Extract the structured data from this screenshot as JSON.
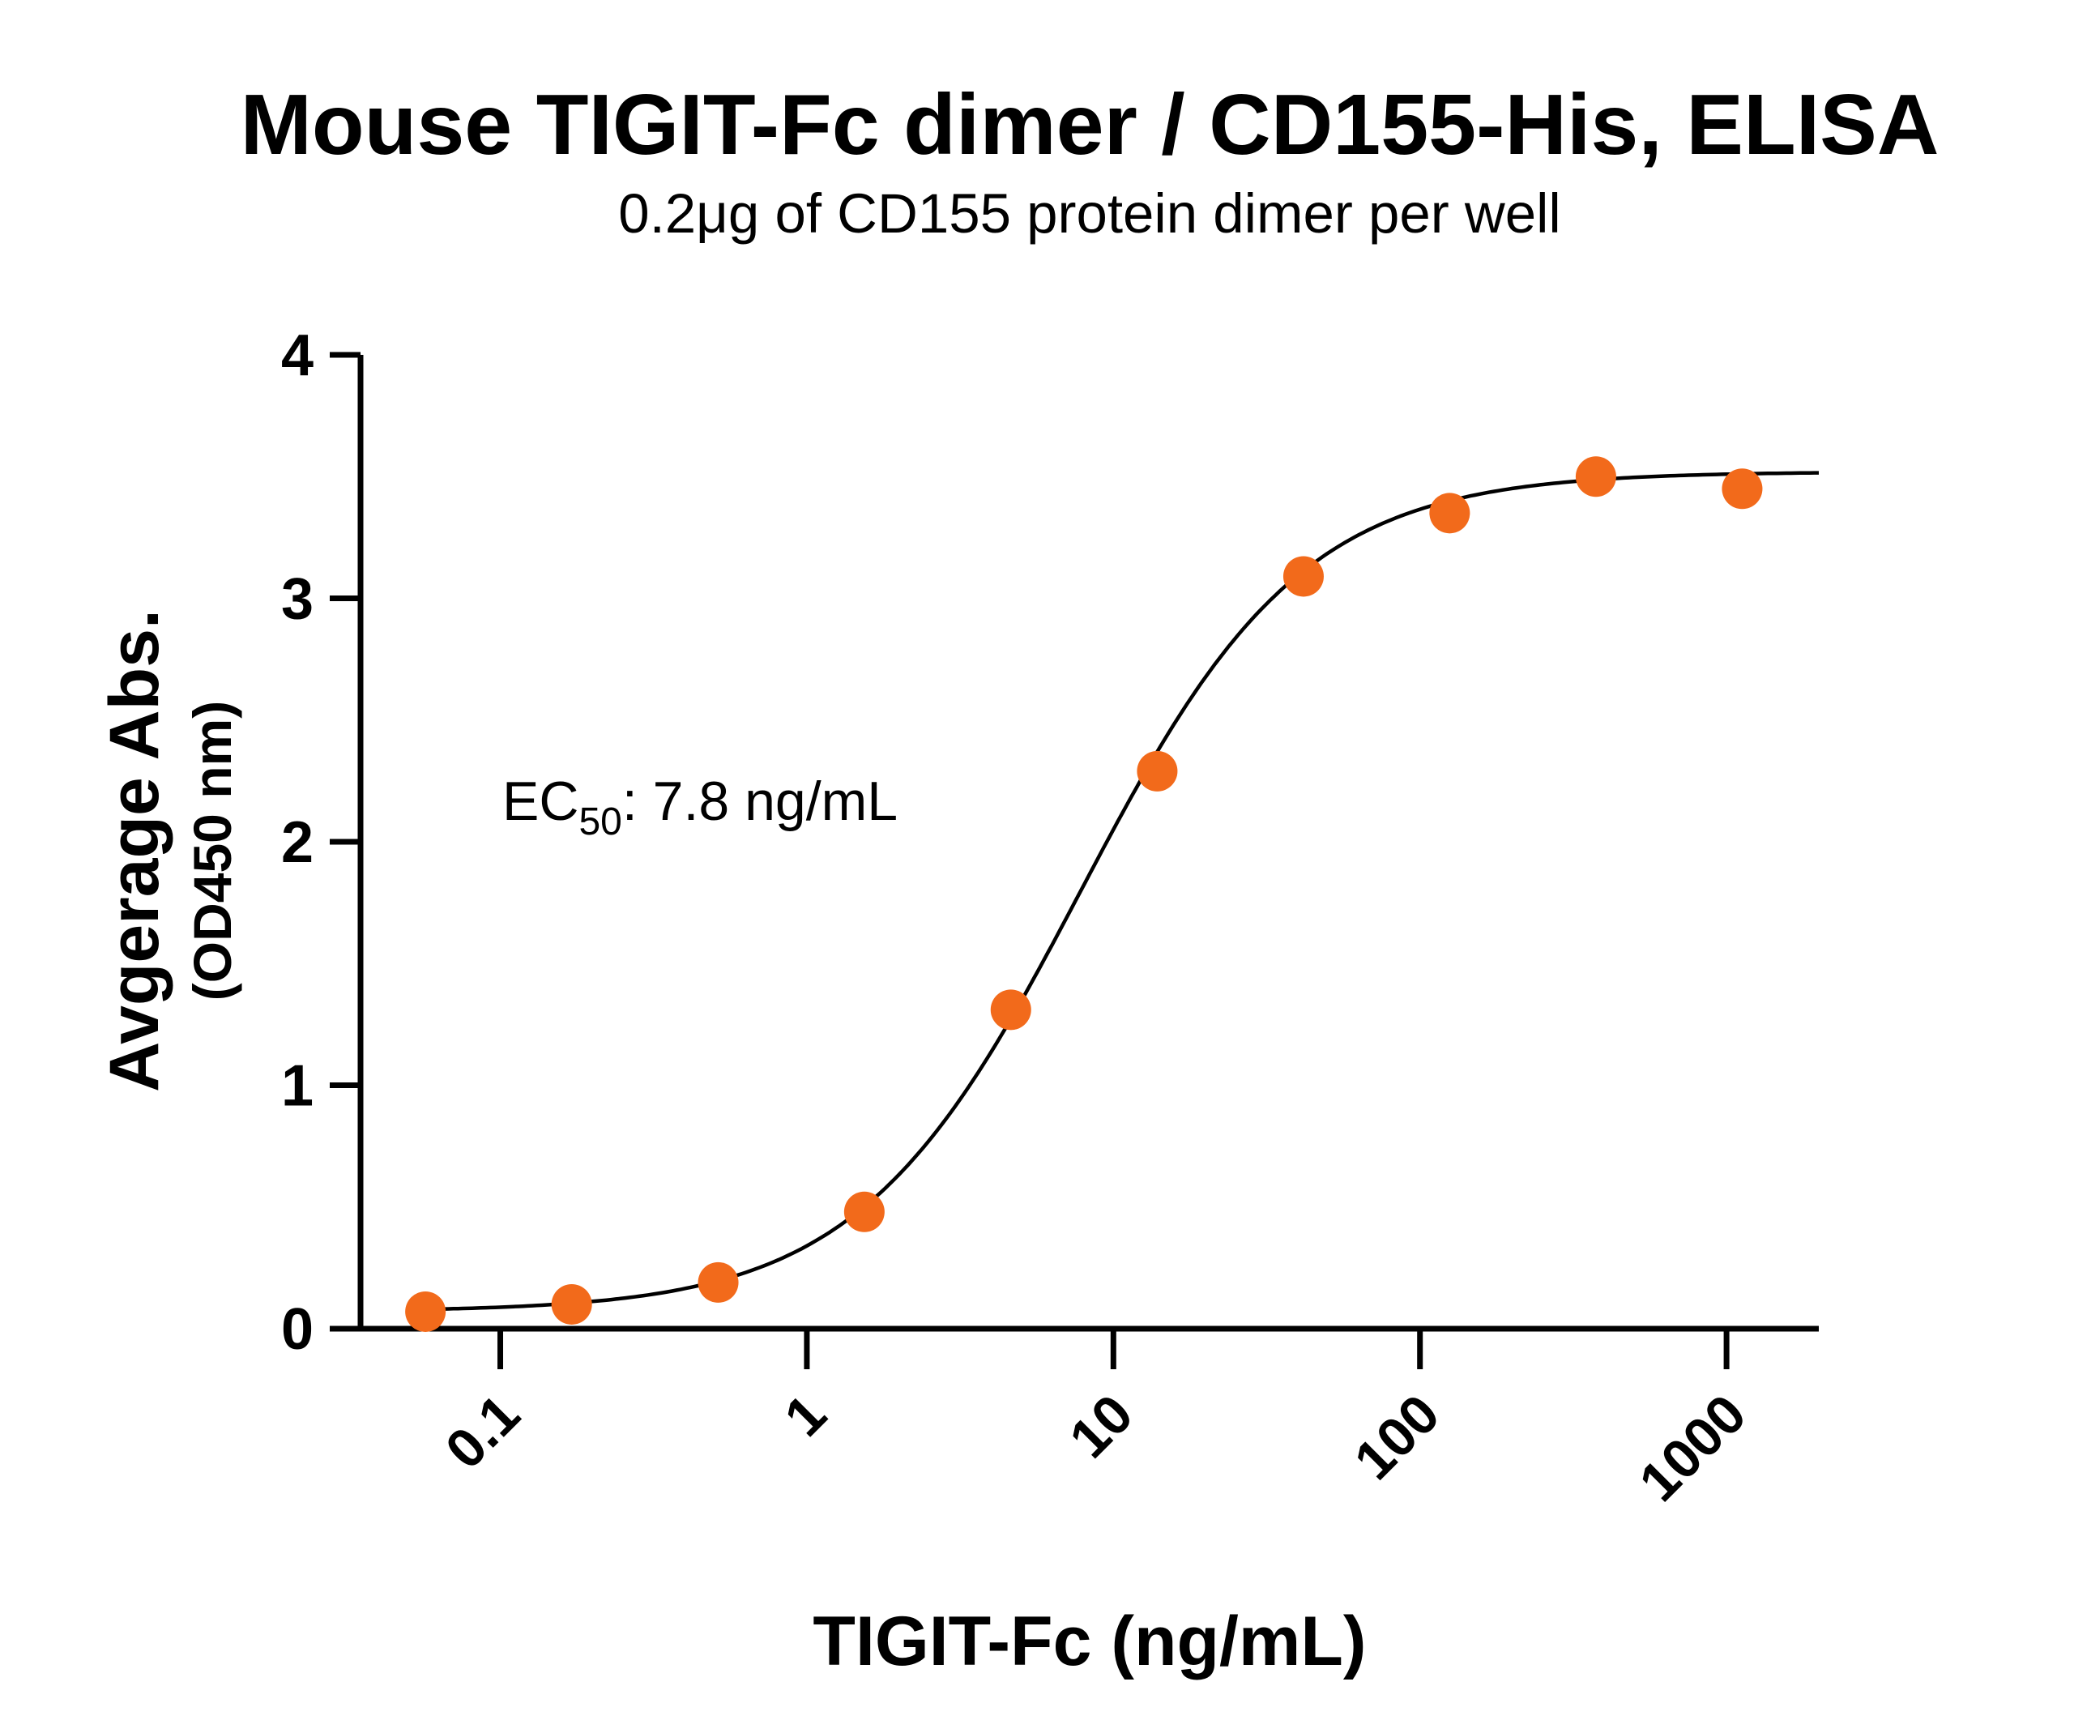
{
  "chart_data": {
    "type": "scatter",
    "title": "Mouse TIGIT-Fc dimer / CD155-His, ELISA",
    "subtitle": "0.2μg of CD155 protein dimer per well",
    "xlabel": "TIGIT-Fc (ng/mL)",
    "ylabel": "Avgerage Abs.",
    "ylabel_sub": "(OD450 nm)",
    "xscale": "log",
    "xlim": [
      0.035,
      2000
    ],
    "ylim": [
      0,
      4
    ],
    "x_ticks": [
      0.1,
      1,
      10,
      100,
      1000
    ],
    "x_tick_labels": [
      "0.1",
      "1",
      "10",
      "100",
      "1000"
    ],
    "y_ticks": [
      0,
      1,
      2,
      3,
      4
    ],
    "y_tick_labels": [
      "0",
      "1",
      "2",
      "3",
      "4"
    ],
    "grid": false,
    "series": [
      {
        "marker_color": "#f26a1b",
        "line_color": "#000000",
        "points": [
          {
            "x": 0.057,
            "y": 0.07
          },
          {
            "x": 0.171,
            "y": 0.1
          },
          {
            "x": 0.514,
            "y": 0.19
          },
          {
            "x": 1.54,
            "y": 0.48
          },
          {
            "x": 4.63,
            "y": 1.31
          },
          {
            "x": 13.9,
            "y": 2.29
          },
          {
            "x": 41.7,
            "y": 3.09
          },
          {
            "x": 125,
            "y": 3.35
          },
          {
            "x": 375,
            "y": 3.5
          },
          {
            "x": 1125,
            "y": 3.45
          }
        ],
        "fit": {
          "model": "4PL",
          "bottom": 0.07,
          "top": 3.52,
          "ec50": 7.8,
          "hill": 1.2
        }
      }
    ],
    "annotation": {
      "prefix": "EC",
      "subscript": "50",
      "text": ": 7.8 ng/mL"
    }
  }
}
